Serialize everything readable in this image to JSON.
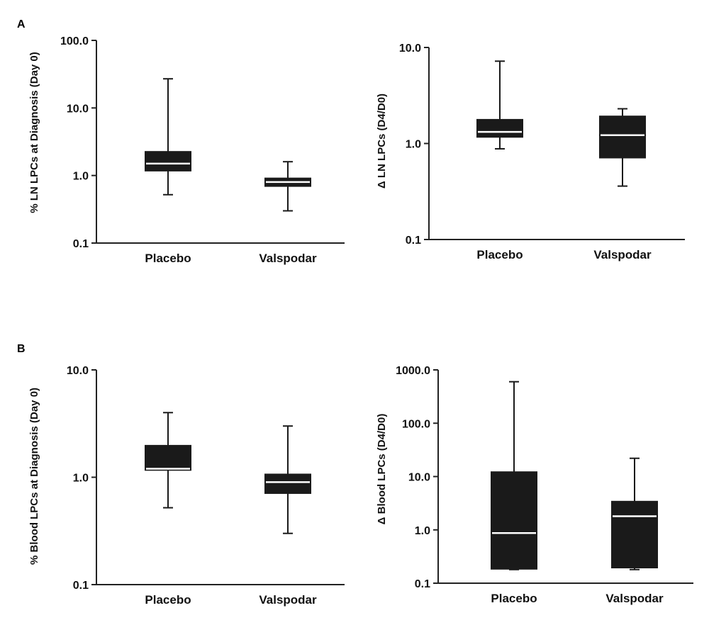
{
  "panels": [
    {
      "letter": "A"
    },
    {
      "letter": "B"
    }
  ],
  "colors": {
    "box": "#1a1a1a",
    "median": "#ffffff",
    "axis": "#222222",
    "text": "#111111"
  },
  "chart_data": [
    {
      "type": "box",
      "panel": "A",
      "ylabel": "% LN LPCs  at Diagnosis (Day 0)",
      "yscale": "log",
      "ylim": [
        0.1,
        100
      ],
      "yticks": [
        0.1,
        1,
        10,
        100
      ],
      "ytick_labels": [
        "0.1",
        "1.0",
        "10.0",
        "100.0"
      ],
      "categories": [
        "Placebo",
        "Valspodar"
      ],
      "boxes": [
        {
          "min": 0.52,
          "q1": 1.15,
          "median": 1.5,
          "q3": 2.3,
          "max": 27
        },
        {
          "min": 0.3,
          "q1": 0.68,
          "median": 0.8,
          "q3": 0.93,
          "max": 1.6
        }
      ]
    },
    {
      "type": "box",
      "panel": "A",
      "ylabel": "Δ LN LPCs (D4/D0)",
      "yscale": "log",
      "ylim": [
        0.1,
        10
      ],
      "yticks": [
        0.1,
        1,
        10
      ],
      "ytick_labels": [
        "0.1",
        "1.0",
        "10.0"
      ],
      "categories": [
        "Placebo",
        "Valspodar"
      ],
      "boxes": [
        {
          "min": 0.88,
          "q1": 1.15,
          "median": 1.32,
          "q3": 1.8,
          "max": 7.2
        },
        {
          "min": 0.36,
          "q1": 0.7,
          "median": 1.22,
          "q3": 1.95,
          "max": 2.3
        }
      ]
    },
    {
      "type": "box",
      "panel": "B",
      "ylabel": "% Blood LPCs  at Diagnosis (Day 0)",
      "yscale": "log",
      "ylim": [
        0.1,
        10
      ],
      "yticks": [
        0.1,
        1,
        10
      ],
      "ytick_labels": [
        "0.1",
        "1.0",
        "10.0"
      ],
      "categories": [
        "Placebo",
        "Valspodar"
      ],
      "boxes": [
        {
          "min": 0.52,
          "q1": 1.15,
          "median": 1.2,
          "q3": 2.0,
          "max": 4.0
        },
        {
          "min": 0.3,
          "q1": 0.7,
          "median": 0.9,
          "q3": 1.08,
          "max": 3.0
        }
      ]
    },
    {
      "type": "box",
      "panel": "B",
      "ylabel": "Δ Blood LPCs (D4/D0)",
      "yscale": "log",
      "ylim": [
        0.1,
        1000
      ],
      "yticks": [
        0.1,
        1,
        10,
        100,
        1000
      ],
      "ytick_labels": [
        "0.1",
        "1.0",
        "10.0",
        "100.0",
        "1000.0"
      ],
      "categories": [
        "Placebo",
        "Valspodar"
      ],
      "boxes": [
        {
          "min": 0.18,
          "q1": 0.18,
          "median": 0.87,
          "q3": 12.5,
          "max": 600
        },
        {
          "min": 0.18,
          "q1": 0.19,
          "median": 1.8,
          "q3": 3.5,
          "max": 22
        }
      ]
    }
  ]
}
